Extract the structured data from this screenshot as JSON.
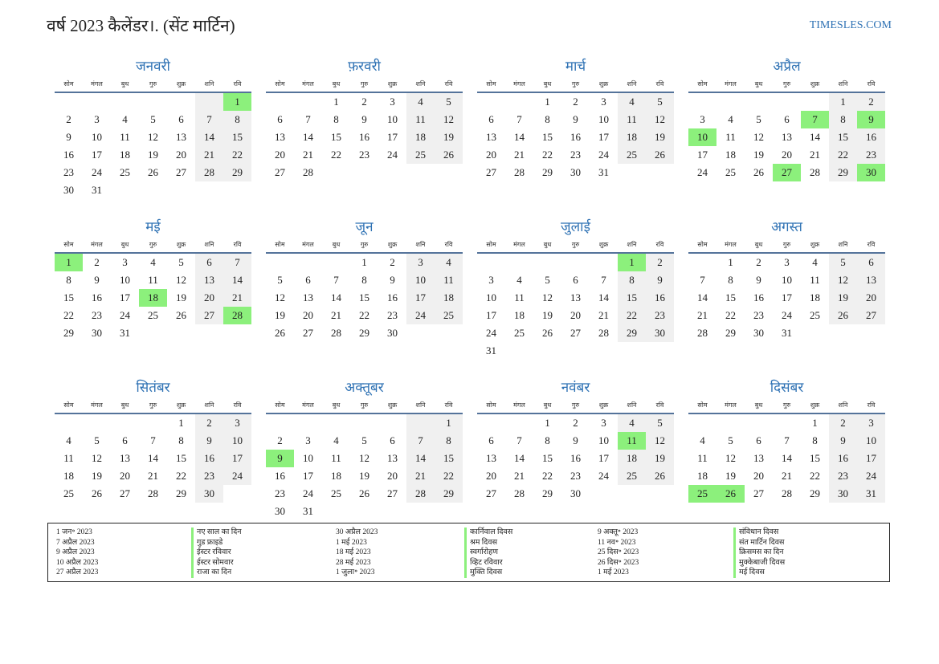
{
  "header": {
    "title": "वर्ष 2023 कैलेंडर।. (सेंट मार्टिन)",
    "site": "TIMESLES.COM"
  },
  "weekdays": [
    "सोम",
    "मंगल",
    "बुध",
    "गुरु",
    "शुक्र",
    "शनि",
    "रवि"
  ],
  "months": [
    {
      "name": "जनवरी",
      "offset": 6,
      "days": 31,
      "holidays": [
        1
      ]
    },
    {
      "name": "फ़रवरी",
      "offset": 2,
      "days": 28,
      "holidays": []
    },
    {
      "name": "मार्च",
      "offset": 2,
      "days": 31,
      "holidays": []
    },
    {
      "name": "अप्रैल",
      "offset": 5,
      "days": 30,
      "holidays": [
        7,
        9,
        10,
        27,
        30
      ]
    },
    {
      "name": "मई",
      "offset": 0,
      "days": 31,
      "holidays": [
        1,
        18,
        28
      ]
    },
    {
      "name": "जून",
      "offset": 3,
      "days": 30,
      "holidays": []
    },
    {
      "name": "जुलाई",
      "offset": 5,
      "days": 31,
      "holidays": [
        1
      ]
    },
    {
      "name": "अगस्त",
      "offset": 1,
      "days": 31,
      "holidays": []
    },
    {
      "name": "सितंबर",
      "offset": 4,
      "days": 30,
      "holidays": []
    },
    {
      "name": "अक्तूबर",
      "offset": 6,
      "days": 31,
      "holidays": [
        9
      ]
    },
    {
      "name": "नवंबर",
      "offset": 2,
      "days": 30,
      "holidays": [
        11
      ]
    },
    {
      "name": "दिसंबर",
      "offset": 4,
      "days": 31,
      "holidays": [
        25,
        26
      ]
    }
  ],
  "holidays_table": [
    {
      "dates": [
        "1 जन॰ 2023",
        "7 अप्रैल 2023",
        "9 अप्रैल 2023",
        "10 अप्रैल 2023",
        "27 अप्रैल 2023"
      ],
      "names": [
        "नए साल का दिन",
        "गुड फ्राइडे",
        "ईस्टर रविवार",
        "ईस्टर सोमवार",
        "राजा का दिन"
      ]
    },
    {
      "dates": [
        "30 अप्रैल 2023",
        "1 मई 2023",
        "18 मई 2023",
        "28 मई 2023",
        "1 जुला॰ 2023"
      ],
      "names": [
        "कार्निवाल दिवस",
        "श्रम दिवस",
        "स्वर्गारोहण",
        "व्हिट रविवार",
        "मुक्ति दिवस"
      ]
    },
    {
      "dates": [
        "9 अक्तू॰ 2023",
        "11 नव॰ 2023",
        "25 दिस॰ 2023",
        "26 दिस॰ 2023",
        "1 मई 2023"
      ],
      "names": [
        "संविधान दिवस",
        "संत मार्टिन दिवस",
        "क्रिसमस का दिन",
        "मुक्केबाजी दिवस",
        "मई दिवस"
      ]
    }
  ]
}
